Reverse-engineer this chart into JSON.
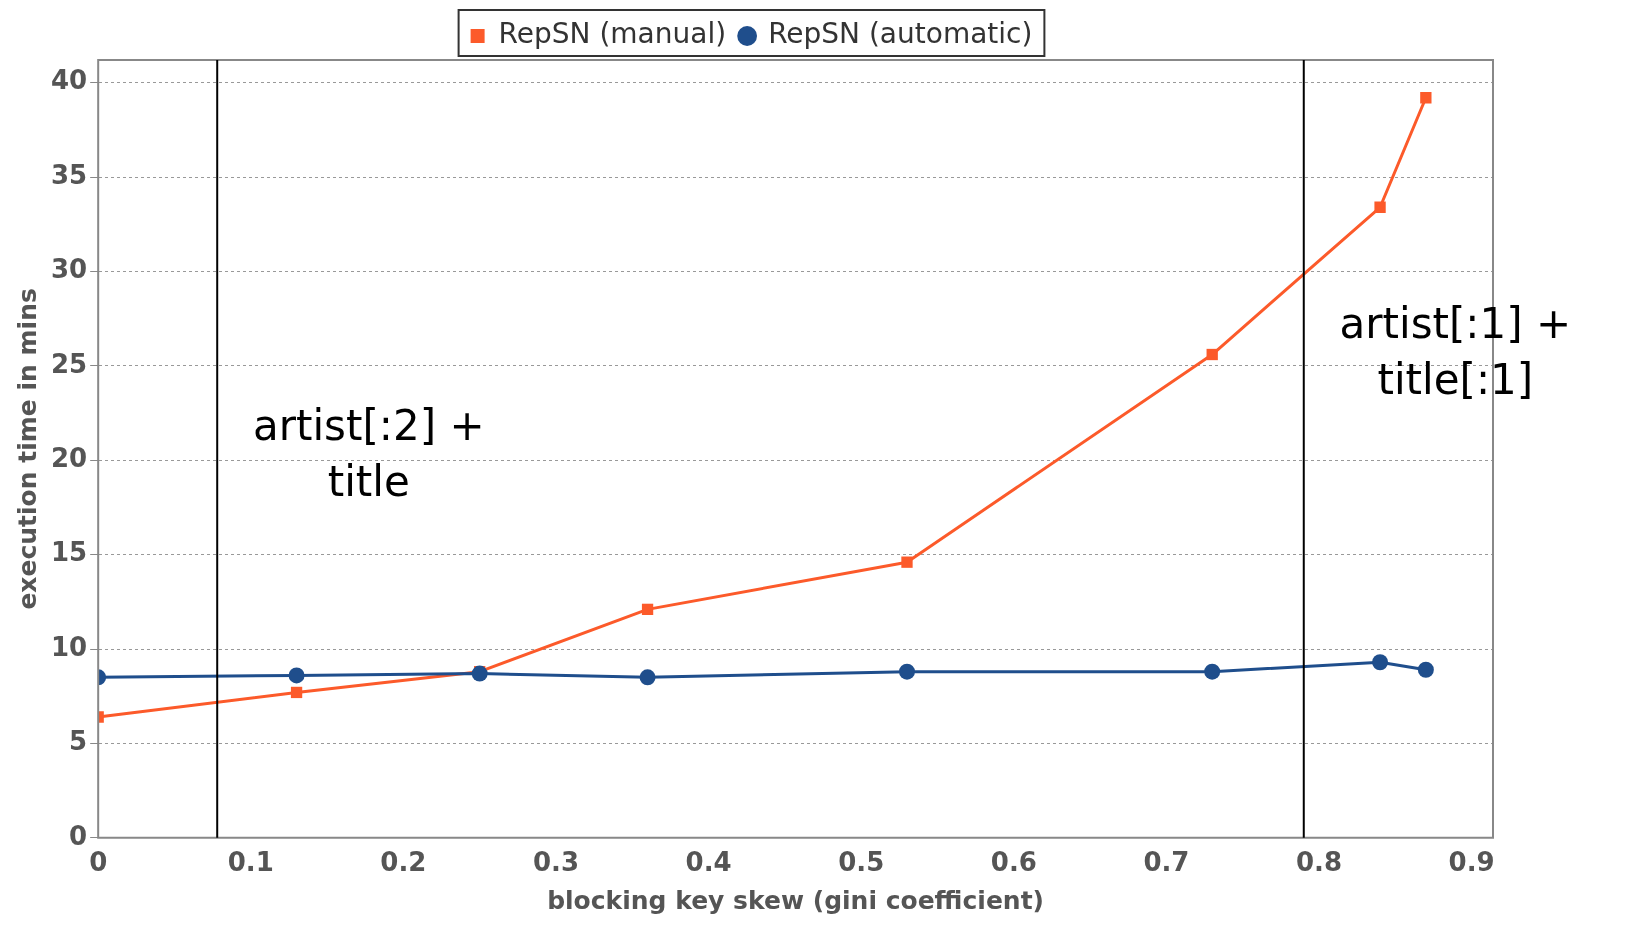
{
  "chart_data": {
    "type": "line",
    "xlabel": "blocking key skew (gini coefficient)",
    "ylabel": "execution time in mins",
    "xlim": [
      0,
      0.914
    ],
    "ylim": [
      0,
      41.2
    ],
    "xticks": [
      0,
      0.1,
      0.2,
      0.3,
      0.4,
      0.5,
      0.6,
      0.7,
      0.8,
      0.9
    ],
    "yticks": [
      0,
      5,
      10,
      15,
      20,
      25,
      30,
      35,
      40
    ],
    "grid": "y",
    "legend": "top",
    "line_style": "solid",
    "series": [
      {
        "name": "RepSN (manual)",
        "color": "#fc5a2a",
        "marker": "square",
        "x": [
          0,
          0.13,
          0.25,
          0.36,
          0.53,
          0.73,
          0.84,
          0.87
        ],
        "values": [
          6.4,
          7.7,
          8.8,
          12.1,
          14.6,
          25.6,
          33.4,
          39.2
        ]
      },
      {
        "name": "RepSN (automatic)",
        "color": "#1f4e8c",
        "marker": "circle",
        "x": [
          0,
          0.13,
          0.25,
          0.36,
          0.53,
          0.73,
          0.84,
          0.87
        ],
        "values": [
          8.5,
          8.6,
          8.7,
          8.5,
          8.8,
          8.8,
          9.3,
          8.9
        ]
      }
    ],
    "ref_lines": [
      {
        "axis": "x",
        "value": 0.078,
        "color": "#000000"
      },
      {
        "axis": "x",
        "value": 0.79,
        "color": "#000000"
      }
    ],
    "annotations": [
      "artist[:2] +\ntitle",
      "artist[:1] +\ntitle[:1]"
    ]
  }
}
